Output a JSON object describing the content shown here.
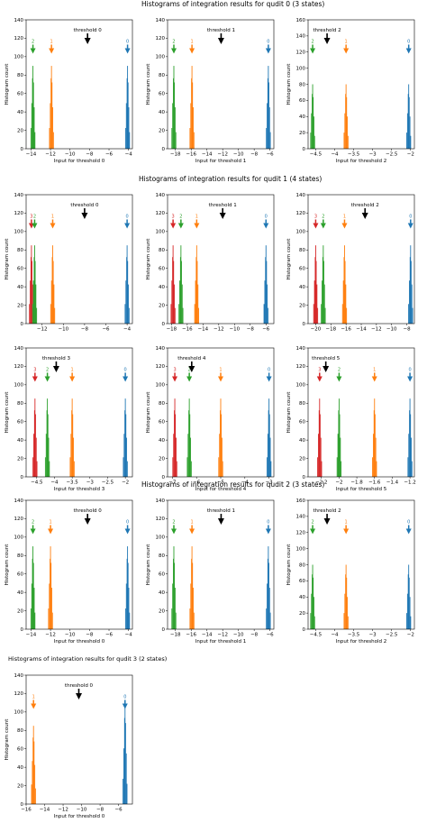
{
  "colors": {
    "state0": "#1f77b4",
    "state1": "#ff7f0e",
    "state2": "#2ca02c",
    "state3": "#d62728",
    "threshold": "#000000"
  },
  "sections": [
    {
      "title": "Histograms of integration results for qudit 0 (3 states)"
    },
    {
      "title": "Histograms of integration results for qudit 1 (4 states)"
    },
    {
      "title": "Histograms of integration results for qudit 2 (3 states)"
    },
    {
      "title": "Histograms of integration results for qudit 3 (2 states)"
    }
  ],
  "chart_data": [
    {
      "type": "histogram",
      "section": 0,
      "xlabel": "Input for threshold 0",
      "ylabel": "Histogram count",
      "xlim": [
        -14.5,
        -3.6
      ],
      "ylim": [
        0,
        140
      ],
      "xticks": [
        -14,
        -12,
        -10,
        -8,
        -6,
        -4
      ],
      "yticks": [
        0,
        20,
        40,
        60,
        80,
        100,
        120,
        140
      ],
      "threshold": {
        "label": "threshold 0",
        "x": -8.2
      },
      "states": [
        {
          "label": "2",
          "x": -13.8,
          "peak": 90
        },
        {
          "label": "1",
          "x": -11.9,
          "peak": 90
        },
        {
          "label": "0",
          "x": -4.1,
          "peak": 90
        }
      ]
    },
    {
      "type": "histogram",
      "section": 0,
      "xlabel": "Input for threshold 1",
      "ylabel": "Histogram count",
      "xlim": [
        -19,
        -5.5
      ],
      "ylim": [
        0,
        140
      ],
      "xticks": [
        -18,
        -16,
        -14,
        -12,
        -10,
        -8,
        -6
      ],
      "yticks": [
        0,
        20,
        40,
        60,
        80,
        100,
        120,
        140
      ],
      "threshold": {
        "label": "threshold 1",
        "x": -12.2
      },
      "states": [
        {
          "label": "2",
          "x": -18.2,
          "peak": 90
        },
        {
          "label": "1",
          "x": -15.9,
          "peak": 90
        },
        {
          "label": "0",
          "x": -6.2,
          "peak": 90
        }
      ]
    },
    {
      "type": "histogram",
      "section": 0,
      "xlabel": "Input for threshold 2",
      "ylabel": "Histogram count",
      "xlim": [
        -4.7,
        -1.9
      ],
      "ylim": [
        0,
        160
      ],
      "xticks": [
        -4.5,
        -4.0,
        -3.5,
        -3.0,
        -2.5,
        -2.0
      ],
      "yticks": [
        0,
        20,
        40,
        60,
        80,
        100,
        120,
        140,
        160
      ],
      "threshold": {
        "label": "threshold 2",
        "x": -4.2
      },
      "states": [
        {
          "label": "2",
          "x": -4.58,
          "peak": 80
        },
        {
          "label": "1",
          "x": -3.7,
          "peak": 80
        },
        {
          "label": "0",
          "x": -2.05,
          "peak": 80
        }
      ]
    },
    {
      "type": "histogram",
      "section": 1,
      "xlabel": "",
      "ylabel": "Histogram count",
      "xlim": [
        -13.5,
        -3.5
      ],
      "ylim": [
        0,
        140
      ],
      "xticks": [
        -12,
        -10,
        -8,
        -6,
        -4
      ],
      "yticks": [
        0,
        20,
        40,
        60,
        80,
        100,
        120,
        140
      ],
      "threshold": {
        "label": "threshold 0",
        "x": -8.0
      },
      "states": [
        {
          "label": "3",
          "x": -13.0,
          "peak": 85
        },
        {
          "label": "2",
          "x": -12.7,
          "peak": 85
        },
        {
          "label": "1",
          "x": -11.0,
          "peak": 85
        },
        {
          "label": "0",
          "x": -4.0,
          "peak": 85
        }
      ]
    },
    {
      "type": "histogram",
      "section": 1,
      "xlabel": "",
      "ylabel": "Histogram count",
      "xlim": [
        -18.5,
        -5
      ],
      "ylim": [
        0,
        140
      ],
      "xticks": [
        -18,
        -16,
        -14,
        -12,
        -10,
        -8,
        -6
      ],
      "yticks": [
        0,
        20,
        40,
        60,
        80,
        100,
        120,
        140
      ],
      "threshold": {
        "label": "threshold 1",
        "x": -11.5
      },
      "states": [
        {
          "label": "3",
          "x": -17.8,
          "peak": 85
        },
        {
          "label": "2",
          "x": -16.8,
          "peak": 85
        },
        {
          "label": "1",
          "x": -14.8,
          "peak": 85
        },
        {
          "label": "0",
          "x": -6.0,
          "peak": 85
        }
      ]
    },
    {
      "type": "histogram",
      "section": 1,
      "xlabel": "",
      "ylabel": "Histogram count",
      "xlim": [
        -21,
        -7
      ],
      "ylim": [
        0,
        140
      ],
      "xticks": [
        -20,
        -18,
        -16,
        -14,
        -12,
        -10,
        -8
      ],
      "yticks": [
        0,
        20,
        40,
        60,
        80,
        100,
        120,
        140
      ],
      "threshold": {
        "label": "threshold 2",
        "x": -13.5
      },
      "states": [
        {
          "label": "3",
          "x": -20.0,
          "peak": 85
        },
        {
          "label": "2",
          "x": -19.0,
          "peak": 85
        },
        {
          "label": "1",
          "x": -16.2,
          "peak": 85
        },
        {
          "label": "0",
          "x": -7.5,
          "peak": 85
        }
      ]
    },
    {
      "type": "histogram",
      "section": 1,
      "xlabel": "Input for threshold 3",
      "ylabel": "Histogram count",
      "xlim": [
        -4.8,
        -1.8
      ],
      "ylim": [
        0,
        140
      ],
      "xticks": [
        -4.5,
        -4.0,
        -3.5,
        -3.0,
        -2.5,
        -2.0
      ],
      "yticks": [
        0,
        20,
        40,
        60,
        80,
        100,
        120,
        140
      ],
      "threshold": {
        "label": "threshold 3",
        "x": -3.95
      },
      "states": [
        {
          "label": "3",
          "x": -4.55,
          "peak": 85
        },
        {
          "label": "2",
          "x": -4.2,
          "peak": 85
        },
        {
          "label": "1",
          "x": -3.5,
          "peak": 85
        },
        {
          "label": "0",
          "x": -2.0,
          "peak": 85
        }
      ]
    },
    {
      "type": "histogram",
      "section": 1,
      "xlabel": "Input for threshold 4",
      "ylabel": "Histogram count",
      "xlim": [
        -7.2,
        -2.8
      ],
      "ylim": [
        0,
        140
      ],
      "xticks": [
        -7,
        -6,
        -5,
        -4,
        -3
      ],
      "yticks": [
        0,
        20,
        40,
        60,
        80,
        100,
        120,
        140
      ],
      "threshold": {
        "label": "threshold 4",
        "x": -6.2
      },
      "states": [
        {
          "label": "3",
          "x": -6.9,
          "peak": 85
        },
        {
          "label": "2",
          "x": -6.3,
          "peak": 85
        },
        {
          "label": "1",
          "x": -5.0,
          "peak": 85
        },
        {
          "label": "0",
          "x": -3.0,
          "peak": 85
        }
      ]
    },
    {
      "type": "histogram",
      "section": 1,
      "xlabel": "Input for threshold 5",
      "ylabel": "Histogram count",
      "xlim": [
        -2.35,
        -1.15
      ],
      "ylim": [
        0,
        140
      ],
      "xticks": [
        -2.2,
        -2.0,
        -1.8,
        -1.6,
        -1.4,
        -1.2
      ],
      "yticks": [
        0,
        20,
        40,
        60,
        80,
        100,
        120,
        140
      ],
      "threshold": {
        "label": "threshold 5",
        "x": -2.15
      },
      "states": [
        {
          "label": "3",
          "x": -2.22,
          "peak": 85
        },
        {
          "label": "2",
          "x": -2.0,
          "peak": 85
        },
        {
          "label": "1",
          "x": -1.6,
          "peak": 85
        },
        {
          "label": "0",
          "x": -1.2,
          "peak": 85
        }
      ]
    },
    {
      "type": "histogram",
      "section": 2,
      "xlabel": "Input for threshold 0",
      "ylabel": "Histogram count",
      "xlim": [
        -14.5,
        -3.6
      ],
      "ylim": [
        0,
        140
      ],
      "xticks": [
        -14,
        -12,
        -10,
        -8,
        -6,
        -4
      ],
      "yticks": [
        0,
        20,
        40,
        60,
        80,
        100,
        120,
        140
      ],
      "threshold": {
        "label": "threshold 0",
        "x": -8.2
      },
      "states": [
        {
          "label": "2",
          "x": -13.8,
          "peak": 90
        },
        {
          "label": "1",
          "x": -12.0,
          "peak": 90
        },
        {
          "label": "0",
          "x": -4.1,
          "peak": 90
        }
      ]
    },
    {
      "type": "histogram",
      "section": 2,
      "xlabel": "Input for threshold 1",
      "ylabel": "Histogram count",
      "xlim": [
        -19,
        -5.5
      ],
      "ylim": [
        0,
        140
      ],
      "xticks": [
        -18,
        -16,
        -14,
        -12,
        -10,
        -8,
        -6
      ],
      "yticks": [
        0,
        20,
        40,
        60,
        80,
        100,
        120,
        140
      ],
      "threshold": {
        "label": "threshold 1",
        "x": -12.2
      },
      "states": [
        {
          "label": "2",
          "x": -18.2,
          "peak": 90
        },
        {
          "label": "1",
          "x": -15.9,
          "peak": 90
        },
        {
          "label": "0",
          "x": -6.2,
          "peak": 90
        }
      ]
    },
    {
      "type": "histogram",
      "section": 2,
      "xlabel": "Input for threshold 2",
      "ylabel": "Histogram count",
      "xlim": [
        -4.7,
        -1.9
      ],
      "ylim": [
        0,
        160
      ],
      "xticks": [
        -4.5,
        -4.0,
        -3.5,
        -3.0,
        -2.5,
        -2.0
      ],
      "yticks": [
        0,
        20,
        40,
        60,
        80,
        100,
        120,
        140,
        160
      ],
      "threshold": {
        "label": "threshold 2",
        "x": -4.2
      },
      "states": [
        {
          "label": "2",
          "x": -4.58,
          "peak": 80
        },
        {
          "label": "1",
          "x": -3.7,
          "peak": 80
        },
        {
          "label": "0",
          "x": -2.05,
          "peak": 80
        }
      ]
    },
    {
      "type": "histogram",
      "section": 3,
      "xlabel": "Input for threshold 0",
      "ylabel": "Histogram count",
      "xlim": [
        -16,
        -4.5
      ],
      "ylim": [
        0,
        140
      ],
      "xticks": [
        -16,
        -14,
        -12,
        -10,
        -8,
        -6
      ],
      "yticks": [
        0,
        20,
        40,
        60,
        80,
        100,
        120,
        140
      ],
      "threshold": {
        "label": "threshold 0",
        "x": -10.3
      },
      "states": [
        {
          "label": "1",
          "x": -15.2,
          "peak": 85
        },
        {
          "label": "0",
          "x": -5.3,
          "peak": 110
        }
      ]
    }
  ]
}
